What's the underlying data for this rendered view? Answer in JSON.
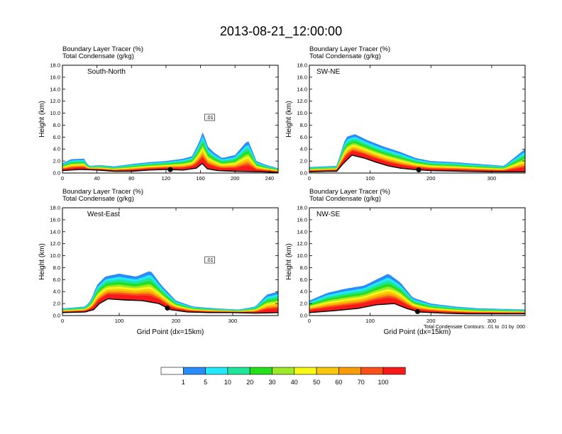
{
  "figure": {
    "title": "2013-08-21_12:00:00",
    "header_line1": "Boundary Layer Tracer   (%)",
    "header_line2": "Total Condensate   (g/kg)",
    "y_axis_label": "Height (km)",
    "x_axis_label": "Grid Point (dx=15km)",
    "contour_note": "Total Condensate Contours: .01 to .01 by .000"
  },
  "colorbar": {
    "levels": [
      "1",
      "5",
      "10",
      "20",
      "30",
      "40",
      "50",
      "60",
      "70",
      "100"
    ],
    "colors": [
      "#ffffff",
      "#2a8cf8",
      "#23e8f8",
      "#1fe59a",
      "#24e01a",
      "#9ee82a",
      "#f8f816",
      "#f8c80e",
      "#f89c0a",
      "#f8501a",
      "#f81a1a"
    ]
  },
  "colors": {
    "terrain": "#000000",
    "contour": "#000000"
  },
  "chart_data": [
    {
      "type": "heatmap",
      "panel": "South-North",
      "header_line1": "Boundary Layer Tracer   (%)",
      "header_line2": "Total Condensate   (g/kg)",
      "ylabel": "Height (km)",
      "xlabel": "",
      "xlim": [
        0,
        250
      ],
      "ylim": [
        0,
        18
      ],
      "x_ticks": [
        "0",
        "40",
        "80",
        "120",
        "160",
        "200",
        "240"
      ],
      "y_ticks": [
        "0.0",
        "2.0",
        "4.0",
        "6.0",
        "8.0",
        "10.0",
        "12.0",
        "14.0",
        "16.0",
        "18.0"
      ],
      "contour_label": ".01",
      "marker_x": 125,
      "terrain": [
        [
          0,
          0.4
        ],
        [
          20,
          0.6
        ],
        [
          40,
          0.5
        ],
        [
          60,
          0.3
        ],
        [
          80,
          0.3
        ],
        [
          100,
          0.5
        ],
        [
          120,
          0.6
        ],
        [
          140,
          0.5
        ],
        [
          155,
          0.8
        ],
        [
          162,
          1.6
        ],
        [
          168,
          0.7
        ],
        [
          180,
          0.4
        ],
        [
          200,
          0.3
        ],
        [
          230,
          0.2
        ],
        [
          250,
          0.1
        ]
      ],
      "tracer_top": [
        [
          0,
          1.6
        ],
        [
          10,
          2.3
        ],
        [
          25,
          2.4
        ],
        [
          30,
          1.2
        ],
        [
          45,
          1.3
        ],
        [
          60,
          1.1
        ],
        [
          80,
          1.5
        ],
        [
          100,
          1.8
        ],
        [
          120,
          2.0
        ],
        [
          140,
          2.4
        ],
        [
          150,
          2.8
        ],
        [
          158,
          5.0
        ],
        [
          163,
          7.0
        ],
        [
          168,
          4.5
        ],
        [
          175,
          3.5
        ],
        [
          185,
          2.5
        ],
        [
          200,
          3.0
        ],
        [
          215,
          5.5
        ],
        [
          225,
          2.0
        ],
        [
          235,
          1.4
        ],
        [
          250,
          0.8
        ]
      ],
      "contours": []
    },
    {
      "type": "heatmap",
      "panel": "SW-NE",
      "header_line1": "Boundary Layer Tracer   (%)",
      "header_line2": "Total Condensate   (g/kg)",
      "ylabel": "Height (km)",
      "xlabel": "",
      "xlim": [
        0,
        355
      ],
      "ylim": [
        0,
        18
      ],
      "x_ticks": [
        "0",
        "100",
        "200",
        "300"
      ],
      "y_ticks": [
        "0.0",
        "2.0",
        "4.0",
        "6.0",
        "8.0",
        "10.0",
        "12.0",
        "14.0",
        "16.0",
        "18.0"
      ],
      "contour_label": "",
      "marker_x": 180,
      "terrain": [
        [
          0,
          0.2
        ],
        [
          30,
          0.3
        ],
        [
          45,
          0.3
        ],
        [
          55,
          1.5
        ],
        [
          70,
          3.0
        ],
        [
          90,
          2.5
        ],
        [
          110,
          1.8
        ],
        [
          130,
          1.2
        ],
        [
          150,
          0.8
        ],
        [
          170,
          0.6
        ],
        [
          200,
          0.4
        ],
        [
          250,
          0.3
        ],
        [
          300,
          0.2
        ],
        [
          355,
          0.2
        ]
      ],
      "tracer_top": [
        [
          0,
          1.0
        ],
        [
          45,
          1.2
        ],
        [
          52,
          3.5
        ],
        [
          60,
          6.0
        ],
        [
          75,
          6.5
        ],
        [
          95,
          5.5
        ],
        [
          120,
          4.5
        ],
        [
          150,
          3.5
        ],
        [
          175,
          2.5
        ],
        [
          200,
          2.0
        ],
        [
          240,
          1.8
        ],
        [
          280,
          1.5
        ],
        [
          320,
          1.2
        ],
        [
          355,
          4.0
        ]
      ],
      "contours": []
    },
    {
      "type": "heatmap",
      "panel": "West-East",
      "header_line1": "Boundary Layer Tracer   (%)",
      "header_line2": "Total Condensate   (g/kg)",
      "ylabel": "Height (km)",
      "xlabel": "Grid Point (dx=15km)",
      "xlim": [
        0,
        380
      ],
      "ylim": [
        0,
        18
      ],
      "x_ticks": [
        "0",
        "100",
        "200",
        "300"
      ],
      "y_ticks": [
        "0.0",
        "2.0",
        "4.0",
        "6.0",
        "8.0",
        "10.0",
        "12.0",
        "14.0",
        "16.0",
        "18.0"
      ],
      "contour_label": ".01",
      "marker_x": 185,
      "terrain": [
        [
          0,
          0.5
        ],
        [
          40,
          0.6
        ],
        [
          55,
          1.0
        ],
        [
          65,
          2.0
        ],
        [
          80,
          2.8
        ],
        [
          110,
          2.6
        ],
        [
          140,
          2.5
        ],
        [
          170,
          2.0
        ],
        [
          190,
          1.0
        ],
        [
          220,
          0.6
        ],
        [
          260,
          0.5
        ],
        [
          300,
          0.5
        ],
        [
          340,
          0.4
        ],
        [
          380,
          0.5
        ]
      ],
      "tracer_top": [
        [
          0,
          1.2
        ],
        [
          40,
          1.5
        ],
        [
          50,
          2.5
        ],
        [
          60,
          5.0
        ],
        [
          75,
          6.5
        ],
        [
          100,
          7.0
        ],
        [
          130,
          6.5
        ],
        [
          155,
          7.5
        ],
        [
          175,
          5.0
        ],
        [
          200,
          2.5
        ],
        [
          230,
          1.5
        ],
        [
          270,
          1.2
        ],
        [
          310,
          1.0
        ],
        [
          340,
          1.5
        ],
        [
          360,
          3.5
        ],
        [
          380,
          4.0
        ]
      ],
      "contours": []
    },
    {
      "type": "heatmap",
      "panel": "NW-SE",
      "header_line1": "Boundary Layer Tracer   (%)",
      "header_line2": "Total Condensate   (g/kg)",
      "ylabel": "Height (km)",
      "xlabel": "Grid Point (dx=15km)",
      "xlim": [
        0,
        355
      ],
      "ylim": [
        0,
        18
      ],
      "x_ticks": [
        "0",
        "100",
        "200",
        "300"
      ],
      "y_ticks": [
        "0.0",
        "2.0",
        "4.0",
        "6.0",
        "8.0",
        "10.0",
        "12.0",
        "14.0",
        "16.0",
        "18.0"
      ],
      "contour_label": "",
      "marker_x": 178,
      "terrain": [
        [
          0,
          0.5
        ],
        [
          40,
          0.8
        ],
        [
          80,
          1.2
        ],
        [
          110,
          1.8
        ],
        [
          140,
          2.0
        ],
        [
          160,
          1.2
        ],
        [
          180,
          0.6
        ],
        [
          220,
          0.4
        ],
        [
          260,
          0.3
        ],
        [
          300,
          0.3
        ],
        [
          355,
          0.3
        ]
      ],
      "tracer_top": [
        [
          0,
          2.5
        ],
        [
          30,
          3.8
        ],
        [
          60,
          4.5
        ],
        [
          90,
          5.0
        ],
        [
          110,
          6.0
        ],
        [
          130,
          7.0
        ],
        [
          150,
          5.5
        ],
        [
          170,
          3.0
        ],
        [
          200,
          2.0
        ],
        [
          240,
          1.5
        ],
        [
          280,
          1.2
        ],
        [
          320,
          1.1
        ],
        [
          355,
          1.0
        ]
      ],
      "contours": []
    }
  ]
}
